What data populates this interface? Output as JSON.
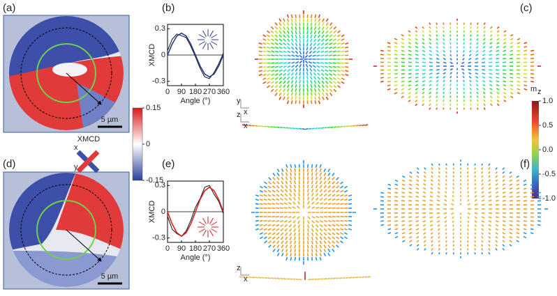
{
  "panels": {
    "a": "(a)",
    "b": "(b)",
    "c": "(c)",
    "d": "(d)",
    "e": "(e)",
    "f": "(f)"
  },
  "scale_bar": "5 µm",
  "axis_triad": {
    "x": "x",
    "y": "y",
    "z": "z"
  },
  "xmcd_colorbar": {
    "label": "XMCD",
    "ticks": [
      0.15,
      0,
      -0.15
    ],
    "lim": [
      -0.15,
      0.15
    ]
  },
  "mz_colorbar": {
    "label": "m",
    "label_sub": "z",
    "lim": [
      -1,
      1
    ],
    "ticks": [
      {
        "value": 1,
        "label": "1.0"
      },
      {
        "value": 0.5,
        "label": "0.5"
      },
      {
        "value": 0,
        "label": "0.0"
      },
      {
        "value": -0.5,
        "label": "-0.5"
      },
      {
        "value": -1,
        "label": "-1.0"
      }
    ]
  },
  "plots": [
    {
      "ylabel": "XMCD",
      "xlabel": "Angle (°)",
      "xlim": [
        0,
        360
      ],
      "ylim": [
        -0.35,
        0.35
      ],
      "xticks": [
        0,
        90,
        180,
        270,
        360
      ],
      "yticks": [
        0.3,
        0,
        -0.3
      ],
      "x": [
        0,
        30,
        60,
        90,
        120,
        150,
        180,
        210,
        240,
        270,
        300,
        330,
        360
      ],
      "measured": [
        0.05,
        0.18,
        0.24,
        0.22,
        0.2,
        0.1,
        -0.02,
        -0.15,
        -0.25,
        -0.27,
        -0.2,
        -0.1,
        0.02
      ],
      "fit": [
        0,
        0.125,
        0.217,
        0.25,
        0.217,
        0.125,
        0,
        -0.125,
        -0.217,
        -0.25,
        -0.217,
        -0.125,
        0
      ],
      "measured_color": "#111111",
      "fit_color": "#2b3a8c"
    },
    {
      "ylabel": "XMCD",
      "xlabel": "Angle (°)",
      "xlim": [
        0,
        360
      ],
      "ylim": [
        -0.35,
        0.35
      ],
      "xticks": [
        0,
        90,
        180,
        270,
        360
      ],
      "yticks": [
        0.3,
        0,
        -0.3
      ],
      "x": [
        0,
        30,
        60,
        90,
        120,
        150,
        180,
        210,
        240,
        270,
        300,
        330,
        360
      ],
      "measured": [
        -0.05,
        -0.2,
        -0.25,
        -0.28,
        -0.22,
        -0.1,
        0.05,
        0.15,
        0.28,
        0.3,
        0.2,
        0.12,
        -0.02
      ],
      "fit": [
        0,
        -0.14,
        -0.24,
        -0.28,
        -0.24,
        -0.14,
        0,
        0.14,
        0.24,
        0.28,
        0.24,
        0.14,
        0
      ],
      "measured_color": "#111111",
      "fit_color": "#d42020"
    }
  ]
}
